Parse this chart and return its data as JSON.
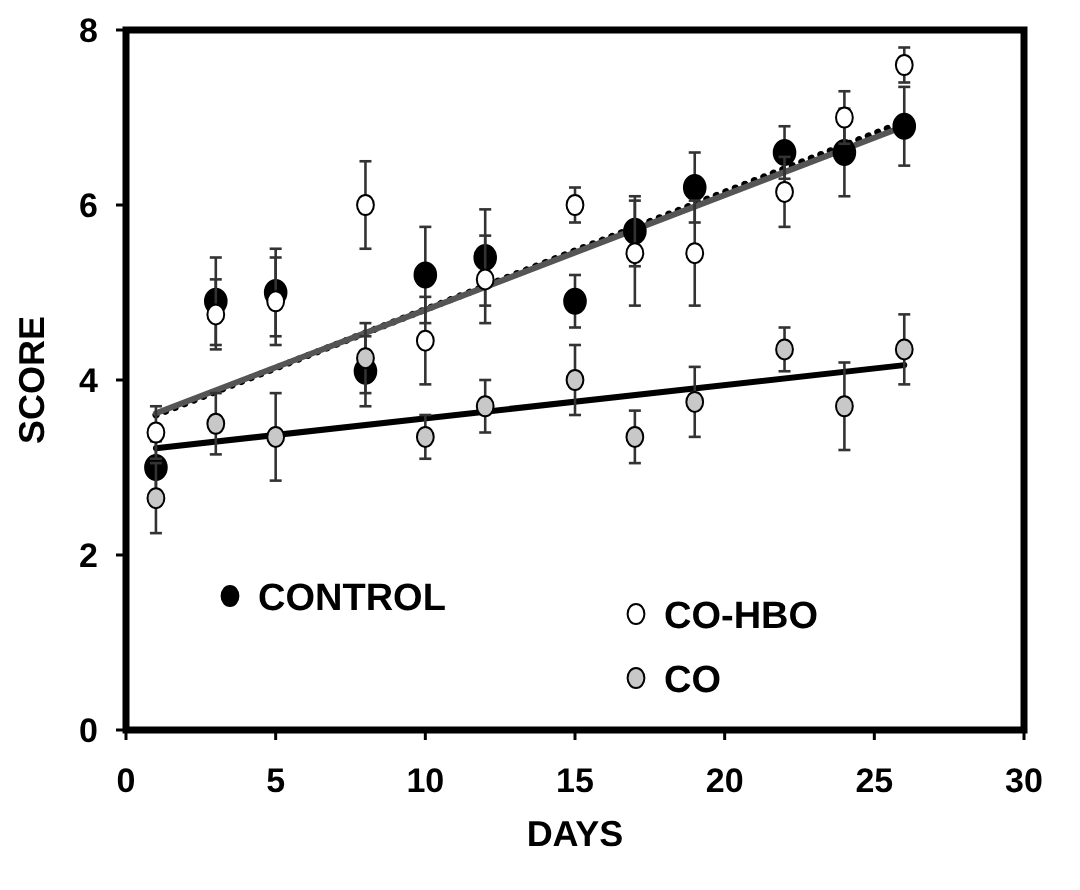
{
  "chart_data": {
    "type": "scatter",
    "xlabel": "DAYS",
    "ylabel": "SCORE",
    "xlim": [
      0,
      30
    ],
    "xticks": [
      0,
      5,
      10,
      15,
      20,
      25,
      30
    ],
    "ylim": [
      0,
      8
    ],
    "yticks": [
      0,
      2,
      4,
      6,
      8
    ],
    "grid": false,
    "legend": "bottom",
    "series": [
      {
        "name": "CONTROL",
        "marker": "circle",
        "color": "#000000",
        "x": [
          1,
          3,
          5,
          8,
          10,
          12,
          15,
          17,
          19,
          22,
          24,
          26
        ],
        "values": [
          3.0,
          4.9,
          5.0,
          4.1,
          5.2,
          5.4,
          4.9,
          5.7,
          6.2,
          6.6,
          6.6,
          6.9
        ],
        "errors": [
          0.3,
          0.5,
          0.5,
          0.4,
          0.55,
          0.55,
          0.3,
          0.4,
          0.4,
          0.3,
          0.5,
          0.45
        ]
      },
      {
        "name": "CO-HBO",
        "marker": "circle",
        "color": "#ffffff",
        "x": [
          1,
          3,
          5,
          8,
          10,
          12,
          15,
          17,
          19,
          22,
          24,
          26
        ],
        "values": [
          3.4,
          4.75,
          4.9,
          6.0,
          4.45,
          5.15,
          6.0,
          5.45,
          5.45,
          6.15,
          7.0,
          7.6
        ],
        "errors": [
          0.3,
          0.4,
          0.5,
          0.5,
          0.5,
          0.5,
          0.2,
          0.6,
          0.6,
          0.4,
          0.3,
          0.2
        ]
      },
      {
        "name": "CO",
        "marker": "circle",
        "color": "#c8c8c8",
        "x": [
          1,
          3,
          5,
          8,
          10,
          12,
          15,
          17,
          19,
          22,
          24,
          26
        ],
        "values": [
          2.65,
          3.5,
          3.35,
          4.25,
          3.35,
          3.7,
          4.0,
          3.35,
          3.75,
          4.35,
          3.7,
          4.35
        ],
        "errors": [
          0.4,
          0.35,
          0.5,
          0.4,
          0.25,
          0.3,
          0.4,
          0.3,
          0.4,
          0.25,
          0.5,
          0.4
        ]
      },
      {
        "type": "line",
        "color": "#000000",
        "line_style": "dotted",
        "x": [
          1,
          26
        ],
        "values": [
          3.6,
          6.95
        ]
      },
      {
        "type": "line",
        "color": "#555555",
        "line_style": "solid",
        "x": [
          1,
          26
        ],
        "values": [
          3.62,
          6.9
        ]
      },
      {
        "type": "line",
        "color": "#000000",
        "line_style": "solid",
        "x": [
          1,
          26
        ],
        "values": [
          3.22,
          4.17
        ]
      }
    ]
  }
}
